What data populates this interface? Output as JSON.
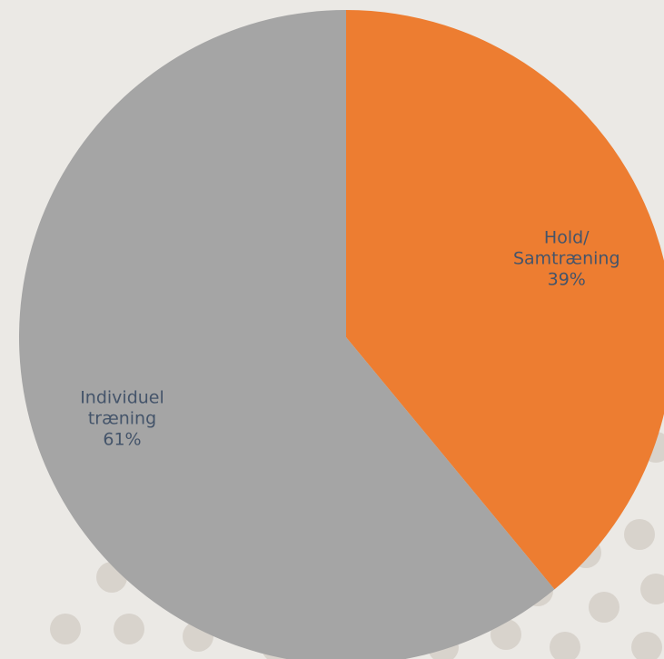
{
  "chart_data": {
    "type": "pie",
    "slices": [
      {
        "label_lines": [
          "Hold/",
          "Samtræning"
        ],
        "value_label": "39%",
        "value": 39,
        "color": "#ed7d31"
      },
      {
        "label_lines": [
          "Individuel",
          "træning"
        ],
        "value_label": "61%",
        "value": 61,
        "color": "#a5a5a5"
      }
    ],
    "start_angle_deg": 0,
    "direction": "clockwise",
    "legend": "none"
  },
  "colors": {
    "background": "#ebe9e5",
    "decor_dots": "#d8d3cc",
    "label_text": "#44546a"
  }
}
